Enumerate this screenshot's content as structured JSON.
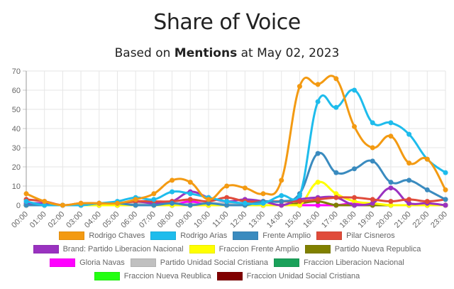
{
  "chart_data": {
    "type": "line",
    "title": "Share of Voice",
    "subtitle": {
      "prefix": "Based on ",
      "metric": "Mentions",
      "suffix": " at May 02, 2023"
    },
    "xlabel": "",
    "ylabel": "",
    "ylim": [
      0,
      70
    ],
    "yticks": [
      "0",
      "10",
      "20",
      "30",
      "40",
      "50",
      "60",
      "70"
    ],
    "grid": true,
    "legend_position": "bottom",
    "categories": [
      "00:00",
      "01:00",
      "02:00",
      "03:00",
      "04:00",
      "05:00",
      "06:00",
      "07:00",
      "08:00",
      "09:00",
      "10:00",
      "11:00",
      "12:00",
      "13:00",
      "14:00",
      "15:00",
      "16:00",
      "17:00",
      "18:00",
      "19:00",
      "20:00",
      "21:00",
      "22:00",
      "23:00"
    ],
    "series": [
      {
        "name": "Fraccion Unidad Social Cristiana",
        "color": "#800000",
        "values": [
          0,
          0,
          0,
          0,
          0,
          0,
          0,
          0,
          0,
          0,
          0,
          0,
          0,
          0,
          0,
          0,
          0,
          0,
          0,
          0,
          0,
          0,
          0,
          0
        ]
      },
      {
        "name": "Fraccion Nueva Reublica",
        "color": "#22ff11",
        "values": [
          0,
          0,
          0,
          0,
          0,
          0,
          0,
          0,
          0,
          0,
          0,
          0,
          0,
          0,
          0,
          0,
          0,
          0,
          0,
          0,
          0,
          0,
          0,
          0
        ]
      },
      {
        "name": "Fraccion Liberacion Nacional",
        "color": "#1aa15a",
        "values": [
          0,
          0,
          0,
          0,
          0,
          0,
          0,
          0,
          0,
          0,
          0,
          0,
          0,
          0,
          0,
          0,
          0,
          0,
          0,
          0,
          0,
          0,
          0,
          0
        ]
      },
      {
        "name": "Partido Unidad Social Cristiana",
        "color": "#c0c0c0",
        "values": [
          1,
          1,
          0,
          0,
          1,
          1,
          1,
          1,
          1,
          1,
          1,
          1,
          0,
          0,
          0,
          0,
          0,
          0,
          0,
          0,
          0,
          0,
          0,
          0
        ]
      },
      {
        "name": "Gloria Navas",
        "color": "#ff00ff",
        "values": [
          0,
          0,
          0,
          0,
          0,
          0,
          0,
          0,
          0,
          2,
          0,
          0,
          0,
          0,
          0,
          0,
          0,
          0,
          1,
          0,
          0,
          0,
          0,
          0
        ]
      },
      {
        "name": "Partido Nueva Republica",
        "color": "#808000",
        "values": [
          0,
          0,
          0,
          0,
          0,
          0,
          0,
          0,
          0,
          0,
          0,
          0,
          0,
          0,
          0,
          1,
          2,
          0,
          0,
          0,
          0,
          0,
          0,
          0
        ]
      },
      {
        "name": "Fraccion Frente Amplio",
        "color": "#ffff00",
        "values": [
          0,
          0,
          0,
          0,
          0,
          0,
          0,
          0,
          0,
          0,
          0,
          0,
          0,
          0,
          0,
          0,
          12,
          6,
          2,
          1,
          0,
          0,
          0,
          0
        ]
      },
      {
        "name": "Brand: Partido Liberacion Nacional",
        "color": "#9a32c0",
        "values": [
          1,
          1,
          0,
          0,
          1,
          1,
          2,
          1,
          2,
          7,
          4,
          2,
          3,
          2,
          0,
          3,
          4,
          4,
          0,
          1,
          9,
          1,
          1,
          0
        ]
      },
      {
        "name": "Pilar Cisneros",
        "color": "#e04b3a",
        "values": [
          3,
          2,
          0,
          1,
          1,
          1,
          2,
          2,
          2,
          3,
          2,
          4,
          2,
          2,
          2,
          2,
          3,
          4,
          4,
          3,
          2,
          3,
          2,
          3
        ]
      },
      {
        "name": "Frente Amplio",
        "color": "#3a8bbf",
        "values": [
          0,
          0,
          0,
          0,
          1,
          1,
          0,
          0,
          1,
          0,
          1,
          0,
          0,
          2,
          2,
          6,
          27,
          17,
          19,
          23,
          12,
          13,
          8,
          3
        ]
      },
      {
        "name": "Rodrigo Arias",
        "color": "#1ebcec",
        "values": [
          2,
          0,
          0,
          0,
          1,
          2,
          4,
          3,
          7,
          6,
          4,
          2,
          1,
          1,
          5,
          5,
          54,
          51,
          60,
          43,
          43,
          37,
          24,
          17
        ]
      },
      {
        "name": "Rodrigo Chaves",
        "color": "#f39a12",
        "values": [
          6,
          2,
          0,
          1,
          1,
          1,
          3,
          6,
          13,
          12,
          3,
          10,
          9,
          6,
          13,
          62,
          63,
          66,
          41,
          30,
          36,
          22,
          24,
          8
        ]
      }
    ],
    "legend_rows": [
      [
        "Rodrigo Chaves",
        "Rodrigo Arias",
        "Frente Amplio",
        "Pilar Cisneros"
      ],
      [
        "Brand: Partido Liberacion Nacional",
        "Fraccion Frente Amplio",
        "Partido Nueva Republica"
      ],
      [
        "Gloria Navas",
        "Partido Unidad Social Cristiana",
        "Fraccion Liberacion Nacional"
      ],
      [
        "Fraccion Nueva Reublica",
        "Fraccion Unidad Social Cristiana"
      ]
    ]
  }
}
